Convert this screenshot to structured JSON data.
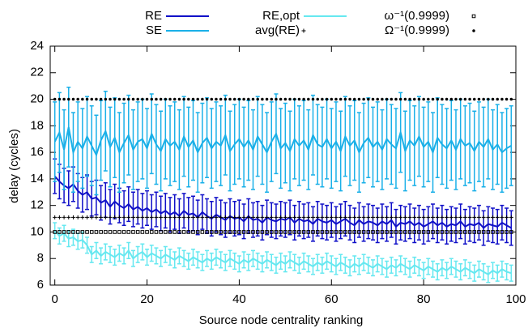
{
  "chart_data": {
    "type": "line",
    "xlabel": "Source node centrality ranking",
    "ylabel": "delay (cycles)",
    "xlim": [
      -1,
      100
    ],
    "ylim": [
      6,
      24
    ],
    "xticks": [
      0,
      20,
      40,
      60,
      80,
      100
    ],
    "yticks": [
      6,
      8,
      10,
      12,
      14,
      16,
      18,
      20,
      22,
      24
    ],
    "x": [
      0,
      1,
      2,
      3,
      4,
      5,
      6,
      7,
      8,
      9,
      10,
      11,
      12,
      13,
      14,
      15,
      16,
      17,
      18,
      19,
      20,
      21,
      22,
      23,
      24,
      25,
      26,
      27,
      28,
      29,
      30,
      31,
      32,
      33,
      34,
      35,
      36,
      37,
      38,
      39,
      40,
      41,
      42,
      43,
      44,
      45,
      46,
      47,
      48,
      49,
      50,
      51,
      52,
      53,
      54,
      55,
      56,
      57,
      58,
      59,
      60,
      61,
      62,
      63,
      64,
      65,
      66,
      67,
      68,
      69,
      70,
      71,
      72,
      73,
      74,
      75,
      76,
      77,
      78,
      79,
      80,
      81,
      82,
      83,
      84,
      85,
      86,
      87,
      88,
      89,
      90,
      91,
      92,
      93,
      94,
      95,
      96,
      97,
      98,
      99
    ],
    "series": [
      {
        "name": "RE",
        "color": "#1010c8",
        "error": 1.3,
        "values": [
          14.2,
          13.8,
          13.5,
          13.3,
          13.6,
          13.1,
          12.8,
          13.0,
          12.5,
          12.6,
          12.2,
          12.4,
          11.9,
          12.3,
          12.0,
          11.8,
          12.1,
          11.7,
          11.9,
          11.6,
          11.8,
          11.5,
          11.7,
          11.4,
          11.6,
          11.3,
          11.5,
          11.2,
          11.6,
          11.3,
          11.4,
          11.1,
          11.5,
          11.2,
          11.0,
          11.3,
          11.1,
          10.9,
          11.2,
          11.0,
          11.1,
          10.8,
          11.2,
          10.9,
          11.0,
          10.7,
          11.1,
          10.9,
          10.8,
          11.0,
          10.9,
          11.1,
          10.7,
          11.0,
          10.8,
          10.9,
          10.6,
          11.0,
          10.8,
          10.7,
          10.9,
          10.6,
          10.8,
          11.0,
          10.7,
          10.5,
          10.9,
          10.6,
          10.8,
          10.7,
          10.5,
          10.8,
          10.6,
          10.9,
          10.4,
          10.7,
          10.6,
          10.8,
          10.5,
          10.7,
          10.4,
          10.6,
          10.8,
          10.5,
          10.7,
          10.4,
          10.6,
          10.5,
          10.8,
          10.4,
          10.6,
          10.5,
          10.7,
          10.3,
          10.6,
          10.5,
          10.4,
          10.7,
          10.5,
          10.3
        ]
      },
      {
        "name": "SE",
        "color": "#1ab0e8",
        "error": 3,
        "values": [
          16.8,
          17.5,
          16.2,
          17.9,
          16.0,
          16.8,
          16.3,
          17.2,
          16.5,
          15.8,
          16.9,
          17.6,
          16.4,
          17.1,
          16.0,
          16.7,
          17.3,
          16.2,
          16.8,
          17.0,
          16.3,
          17.4,
          16.6,
          16.1,
          17.0,
          16.5,
          16.8,
          16.2,
          17.2,
          16.4,
          16.9,
          16.0,
          16.7,
          17.1,
          16.3,
          16.8,
          16.5,
          17.3,
          16.1,
          16.6,
          17.0,
          16.4,
          16.9,
          16.2,
          17.2,
          16.6,
          16.0,
          16.8,
          17.4,
          16.3,
          16.7,
          16.1,
          17.0,
          16.5,
          16.9,
          16.2,
          17.3,
          16.6,
          16.4,
          17.0,
          16.3,
          16.8,
          16.1,
          17.2,
          16.5,
          16.9,
          16.0,
          16.7,
          17.1,
          16.4,
          16.8,
          16.2,
          17.0,
          16.6,
          16.3,
          17.5,
          16.1,
          16.9,
          16.5,
          17.2,
          16.4,
          16.8,
          16.0,
          17.1,
          16.6,
          16.3,
          16.9,
          16.2,
          17.0,
          16.5,
          16.7,
          16.1,
          16.8,
          16.4,
          17.0,
          16.2,
          16.6,
          16.0,
          16.3,
          16.5
        ]
      },
      {
        "name": "RE,opt",
        "color": "#66e8f0",
        "error": 0.6,
        "values": [
          10.1,
          9.7,
          9.9,
          9.5,
          9.6,
          9.3,
          9.4,
          9.0,
          8.3,
          8.6,
          8.2,
          8.5,
          8.3,
          8.1,
          8.4,
          8.2,
          8.6,
          8.0,
          8.3,
          8.5,
          8.1,
          8.4,
          8.2,
          8.0,
          8.3,
          8.1,
          7.9,
          8.2,
          8.0,
          7.8,
          8.1,
          7.9,
          7.7,
          8.0,
          7.8,
          8.1,
          7.9,
          7.7,
          8.0,
          7.8,
          7.6,
          7.9,
          7.7,
          8.0,
          7.8,
          7.6,
          7.9,
          7.7,
          7.5,
          7.8,
          7.6,
          7.9,
          7.7,
          7.5,
          7.8,
          7.6,
          7.4,
          7.7,
          7.5,
          7.8,
          7.6,
          7.4,
          7.7,
          7.5,
          7.3,
          7.6,
          7.4,
          7.7,
          7.5,
          7.3,
          7.6,
          7.4,
          7.2,
          7.5,
          7.3,
          7.6,
          7.4,
          7.2,
          7.5,
          7.3,
          7.1,
          7.4,
          7.2,
          7.0,
          7.3,
          7.1,
          7.4,
          7.2,
          7.0,
          7.3,
          7.1,
          6.9,
          7.2,
          7.0,
          6.8,
          7.1,
          6.9,
          7.2,
          7.0,
          6.9
        ]
      },
      {
        "name": "avg(RE)",
        "color": "#000000",
        "marker": "plus",
        "value": 11.1
      },
      {
        "name": "ω⁻¹(0.9999)",
        "color": "#000000",
        "marker": "square",
        "value": 10
      },
      {
        "name": "Ω⁻¹(0.9999)",
        "color": "#000000",
        "marker": "dot",
        "value": 20
      }
    ]
  }
}
